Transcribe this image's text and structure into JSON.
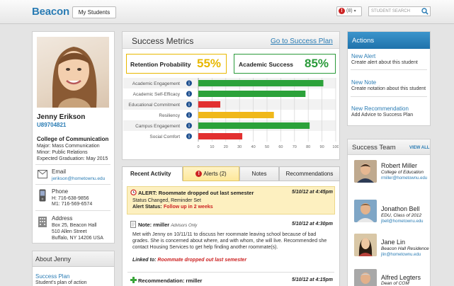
{
  "header": {
    "logo": "Beacon",
    "my_students": "My Students",
    "alert_count": "(8)",
    "search_placeholder": "STUDENT SEARCH",
    "alert_icon": "!"
  },
  "student": {
    "name": "Jenny Erikson",
    "id": "U89704821",
    "college": "College of Communication",
    "major": "Major: Mass Communication",
    "minor": "Minor: Public Relations",
    "graduation": "Expected Graduation: May 2015",
    "email_label": "Email",
    "email": "jerikson@hometownu.edu",
    "phone_label": "Phone",
    "phone_h": "H:   716-638-9856",
    "phone_m": "M1: 716-569-6574",
    "address_label": "Address",
    "address_1": "Box 25, Beacon Hall",
    "address_2": "510 Allen Street",
    "address_3": "Buffalo, NY 14206 USA"
  },
  "about": {
    "title": "About Jenny",
    "link": "Success Plan",
    "desc": "Student's plan of action"
  },
  "metrics": {
    "title": "Success Metrics",
    "link": "Go to Success Plan",
    "retention_label": "Retention Probability",
    "retention_value": "55%",
    "academic_label": "Academic Success",
    "academic_value": "85%",
    "retention_color": "#e8b800",
    "academic_color": "#2a9a3a"
  },
  "chart_data": {
    "type": "bar",
    "orientation": "horizontal",
    "categories": [
      "Academic Engagement",
      "Academic Self-Efficacy",
      "Educational Commitment",
      "Resiliency",
      "Campus Engagement",
      "Social Comfort"
    ],
    "values": [
      91,
      78,
      16,
      55,
      81,
      32
    ],
    "colors": [
      "#2ca23a",
      "#2ca23a",
      "#e23030",
      "#f0b81a",
      "#2ca23a",
      "#e23030"
    ],
    "xlim": [
      0,
      100
    ],
    "ticks": [
      "0",
      "10",
      "20",
      "30",
      "40",
      "50",
      "60",
      "70",
      "80",
      "90",
      "100"
    ],
    "grid": true
  },
  "tabs": {
    "recent": "Recent Activity",
    "alerts": "Alerts (2)",
    "notes": "Notes",
    "recommendations": "Recommendations",
    "alert_icon": "!"
  },
  "activity": [
    {
      "title": "ALERT: Roommate dropped out last semester",
      "date": "5/10/12 at 4:45pm",
      "line1": "Status Changed, Reminder Set",
      "status_label": "Alert Status:",
      "status_value": "Follow up in 2 weeks"
    },
    {
      "title": "Note:",
      "author": "rmiller",
      "visibility": "Advisors Only",
      "date": "5/10/12 at 4:30pm",
      "body": "Met with Jenny on 10/11/11 to discuss her roommate leaving school because of bad grades. She is concerned about where, and with whom, she will live. Recommended she contact Housing Services to get help finding another roommate(s).",
      "linked_label": "Linked to:",
      "linked_value": "Roommate dropped out last semester"
    },
    {
      "title": "Recommendation:",
      "author": "rmiller",
      "date": "5/10/12 at 4:15pm"
    }
  ],
  "actions": {
    "title": "Actions",
    "items": [
      {
        "label": "New Alert",
        "desc": "Create alert about this student"
      },
      {
        "label": "New Note",
        "desc": "Create notation about this student"
      },
      {
        "label": "New Recommendation",
        "desc": "Add Advice to Success Plan"
      }
    ]
  },
  "team": {
    "title": "Success Team",
    "view_all": "VIEW ALL",
    "members": [
      {
        "name": "Robert Miller",
        "role": "College of Education",
        "email": "rmiller@hometownu.edu"
      },
      {
        "name": "Jonathon Bell",
        "role": "EDU, Class of 2012",
        "email": "jbell@hometownu.edu"
      },
      {
        "name": "Jane Lin",
        "role": "Beacon Hall Residence",
        "email": "jlin@hometownu.edu"
      },
      {
        "name": "Alfred Legters",
        "role": "Dean of COM",
        "email": ""
      }
    ]
  }
}
